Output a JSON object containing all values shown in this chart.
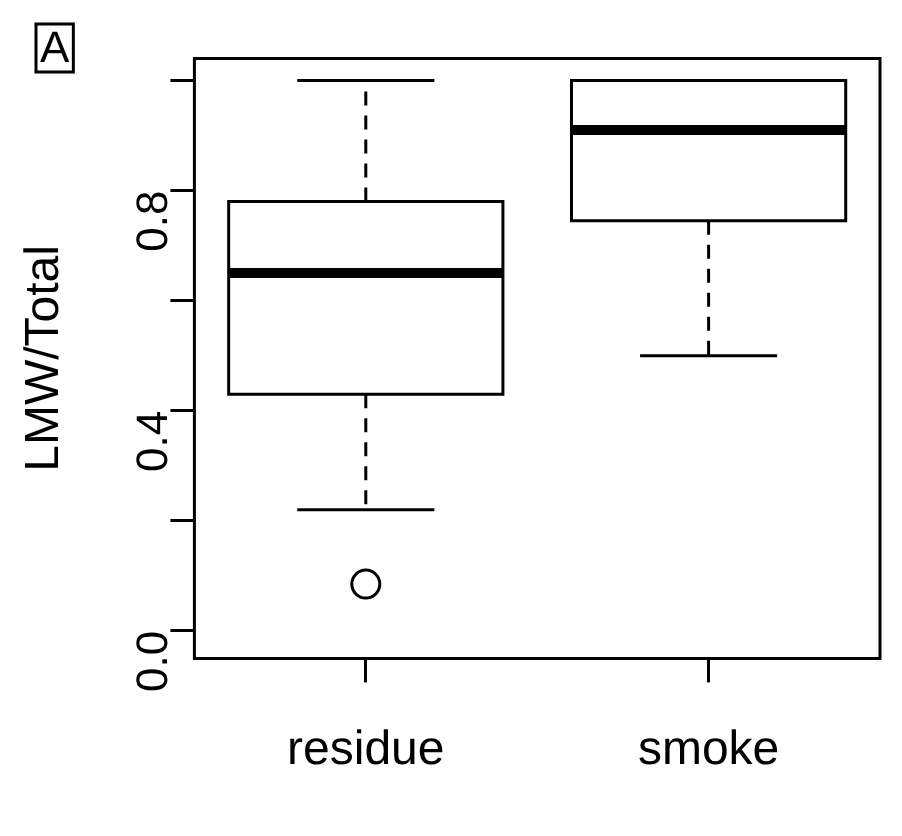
{
  "chart_data": {
    "type": "box",
    "ylabel": "LMW/Total",
    "categories": [
      "residue",
      "smoke"
    ],
    "boxes": [
      {
        "low": 0.22,
        "q1": 0.43,
        "median": 0.65,
        "q3": 0.78,
        "high": 1.0,
        "outliers": [
          0.085
        ]
      },
      {
        "low": 0.5,
        "q1": 0.745,
        "median": 0.91,
        "q3": 1.0,
        "high": 1.0
      }
    ],
    "ylim": [
      -0.05,
      1.04
    ],
    "yticks": [
      {
        "value": 0,
        "label": "0.0"
      },
      {
        "value": 0.2,
        "label": null
      },
      {
        "value": 0.4,
        "label": "0.4"
      },
      {
        "value": 0.6,
        "label": null
      },
      {
        "value": 0.8,
        "label": "0.8"
      },
      {
        "value": 1.0,
        "label": null
      }
    ],
    "annotations": [
      "A"
    ]
  }
}
